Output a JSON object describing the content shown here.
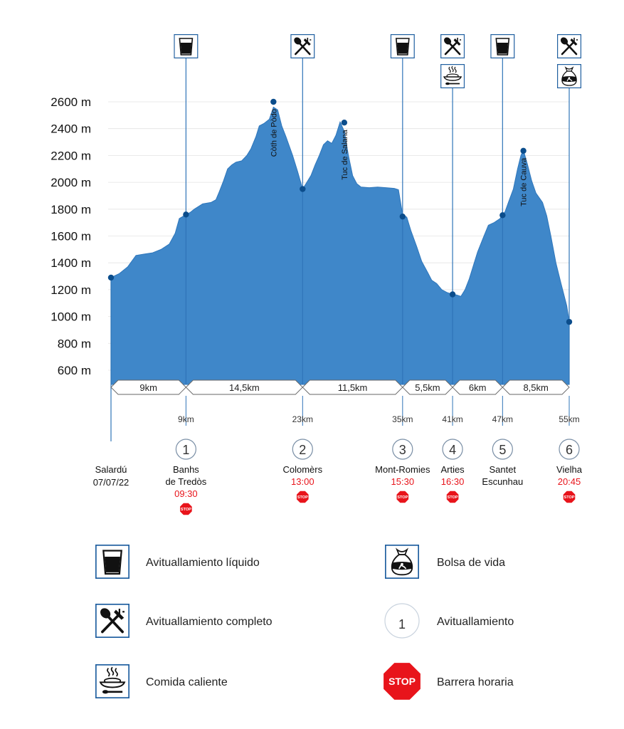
{
  "chart_data": {
    "type": "area",
    "y_unit": "m",
    "ylim": [
      600,
      2600
    ],
    "y_ticks": [
      "2600 m",
      "2400 m",
      "2200 m",
      "2000 m",
      "1800 m",
      "1600 m",
      "1400 m",
      "1200 m",
      "1000 m",
      "800 m",
      "600 m"
    ],
    "x_unit": "km",
    "xlim": [
      0,
      55
    ],
    "profile": [
      [
        0,
        1290
      ],
      [
        0.5,
        1305
      ],
      [
        1,
        1320
      ],
      [
        2,
        1370
      ],
      [
        3,
        1455
      ],
      [
        4,
        1465
      ],
      [
        5,
        1475
      ],
      [
        6,
        1500
      ],
      [
        7,
        1540
      ],
      [
        7.7,
        1620
      ],
      [
        8.2,
        1730
      ],
      [
        9,
        1760
      ],
      [
        9.5,
        1775
      ],
      [
        10,
        1800
      ],
      [
        11,
        1840
      ],
      [
        12,
        1850
      ],
      [
        12.6,
        1870
      ],
      [
        13,
        1930
      ],
      [
        13.5,
        2010
      ],
      [
        14,
        2100
      ],
      [
        14.5,
        2130
      ],
      [
        15,
        2150
      ],
      [
        15.7,
        2160
      ],
      [
        16.3,
        2200
      ],
      [
        16.8,
        2250
      ],
      [
        17.4,
        2340
      ],
      [
        17.8,
        2420
      ],
      [
        18.4,
        2440
      ],
      [
        19,
        2470
      ],
      [
        19.5,
        2560
      ],
      [
        20,
        2540
      ],
      [
        20.5,
        2420
      ],
      [
        21,
        2340
      ],
      [
        21.8,
        2200
      ],
      [
        22.4,
        2080
      ],
      [
        23,
        1950
      ],
      [
        23.5,
        2000
      ],
      [
        24,
        2050
      ],
      [
        24.5,
        2130
      ],
      [
        25,
        2200
      ],
      [
        25.5,
        2280
      ],
      [
        26,
        2310
      ],
      [
        26.5,
        2290
      ],
      [
        27,
        2350
      ],
      [
        27.5,
        2450
      ],
      [
        28,
        2380
      ],
      [
        28.5,
        2200
      ],
      [
        29,
        2050
      ],
      [
        29.5,
        1990
      ],
      [
        30,
        1965
      ],
      [
        31,
        1960
      ],
      [
        32,
        1965
      ],
      [
        33,
        1960
      ],
      [
        34,
        1955
      ],
      [
        34.5,
        1945
      ],
      [
        35,
        1760
      ],
      [
        35.5,
        1740
      ],
      [
        36,
        1640
      ],
      [
        36.7,
        1520
      ],
      [
        37.3,
        1410
      ],
      [
        38,
        1330
      ],
      [
        38.5,
        1270
      ],
      [
        39.1,
        1245
      ],
      [
        39.7,
        1200
      ],
      [
        40.3,
        1180
      ],
      [
        41,
        1165
      ],
      [
        41.5,
        1160
      ],
      [
        42,
        1150
      ],
      [
        42.5,
        1200
      ],
      [
        43,
        1280
      ],
      [
        43.5,
        1380
      ],
      [
        44,
        1480
      ],
      [
        44.7,
        1590
      ],
      [
        45.3,
        1680
      ],
      [
        46,
        1700
      ],
      [
        46.7,
        1730
      ],
      [
        47,
        1760
      ],
      [
        47.3,
        1780
      ],
      [
        47.7,
        1850
      ],
      [
        48.3,
        1950
      ],
      [
        48.8,
        2100
      ],
      [
        49.2,
        2200
      ],
      [
        49.5,
        2240
      ],
      [
        50,
        2130
      ],
      [
        50.5,
        2010
      ],
      [
        51,
        1920
      ],
      [
        51.8,
        1850
      ],
      [
        52.3,
        1750
      ],
      [
        52.8,
        1600
      ],
      [
        53.4,
        1400
      ],
      [
        54,
        1250
      ],
      [
        54.7,
        1080
      ],
      [
        55,
        960
      ]
    ],
    "points": [
      {
        "km": 0,
        "elev": 1290
      },
      {
        "km": 9,
        "elev": 1760
      },
      {
        "km": 19.5,
        "elev": 2600
      },
      {
        "km": 23,
        "elev": 1950
      },
      {
        "km": 28,
        "elev": 2445
      },
      {
        "km": 35,
        "elev": 1745
      },
      {
        "km": 41,
        "elev": 1165
      },
      {
        "km": 47,
        "elev": 1755
      },
      {
        "km": 49.5,
        "elev": 2235
      },
      {
        "km": 55,
        "elev": 960
      }
    ],
    "peaks": [
      {
        "name": "Còth de Pòdo",
        "km": 19.5
      },
      {
        "name": "Tuc de Salana",
        "km": 28
      },
      {
        "name": "Tuc de Cauva",
        "km": 49.5
      }
    ],
    "segments": [
      {
        "label": "9km",
        "from": 0,
        "to": 9
      },
      {
        "label": "14,5km",
        "from": 9,
        "to": 23
      },
      {
        "label": "11,5km",
        "from": 23,
        "to": 35
      },
      {
        "label": "5,5km",
        "from": 35,
        "to": 41
      },
      {
        "label": "6km",
        "from": 41,
        "to": 47
      },
      {
        "label": "8,5km",
        "from": 47,
        "to": 55
      }
    ],
    "start": {
      "name1": "Salardú",
      "name2": "07/07/22",
      "km": 0
    },
    "checkpoints": [
      {
        "num": "1",
        "km": 9,
        "km_label": "9km",
        "name1": "Banhs",
        "name2": "de Tredòs",
        "time": "09:30",
        "stop": true,
        "icons": [
          "liquid"
        ]
      },
      {
        "num": "2",
        "km": 23,
        "km_label": "23km",
        "name1": "Colomèrs",
        "name2": "",
        "time": "13:00",
        "stop": true,
        "icons": [
          "complete"
        ]
      },
      {
        "num": "3",
        "km": 35,
        "km_label": "35km",
        "name1": "Mont-Romies",
        "name2": "",
        "time": "15:30",
        "stop": true,
        "icons": [
          "liquid"
        ]
      },
      {
        "num": "4",
        "km": 41,
        "km_label": "41km",
        "name1": "Arties",
        "name2": "",
        "time": "16:30",
        "stop": true,
        "icons": [
          "complete",
          "hot"
        ]
      },
      {
        "num": "5",
        "km": 47,
        "km_label": "47km",
        "name1": "Santet",
        "name2": "Escunhau",
        "time": "",
        "stop": false,
        "icons": [
          "liquid"
        ]
      },
      {
        "num": "6",
        "km": 55,
        "km_label": "55km",
        "name1": "Vielha",
        "name2": "",
        "time": "20:45",
        "stop": true,
        "icons": [
          "complete",
          "bag"
        ]
      }
    ],
    "stop_text": "STOP",
    "colors": {
      "fill": "#3f87c9",
      "marker": "#0b4d8c",
      "line": "#2f74b8",
      "time": "#e8141b",
      "stop": "#e8141b"
    }
  },
  "legend": [
    {
      "icon": "liquid",
      "label": "Avituallamiento líquido"
    },
    {
      "icon": "complete",
      "label": "Avituallamiento completo"
    },
    {
      "icon": "hot",
      "label": "Comida caliente"
    },
    {
      "icon": "bag",
      "label": "Bolsa de vida"
    },
    {
      "icon": "number",
      "number": "1",
      "label": "Avituallamiento"
    },
    {
      "icon": "stop",
      "label": "Barrera horaria"
    }
  ]
}
